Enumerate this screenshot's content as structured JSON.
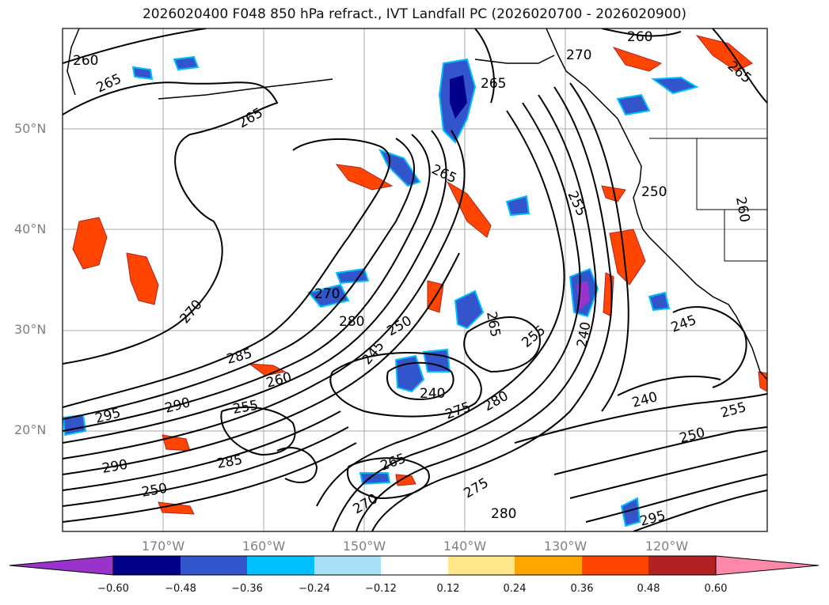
{
  "title": "2026020400 F048 850 hPa refract., IVT Landfall PC (2026020700 - 2026020900)",
  "lat_labels": [
    "50°N",
    "40°N",
    "30°N",
    "20°N"
  ],
  "lon_labels": [
    "170°W",
    "160°W",
    "150°W",
    "140°W",
    "130°W",
    "120°W"
  ],
  "colorbar": {
    "ticks": [
      "−0.60",
      "−0.48",
      "−0.36",
      "−0.24",
      "−0.12",
      "0.12",
      "0.24",
      "0.36",
      "0.48",
      "0.60"
    ],
    "colors": [
      "#9933cc",
      "#00008b",
      "#3355cc",
      "#00bfff",
      "#aadff8",
      "#ffffff",
      "#ffe68a",
      "#ffa500",
      "#ff4500",
      "#b22222",
      "#ff88aa"
    ]
  },
  "contour_labels": [
    "260",
    "265",
    "265",
    "270",
    "265",
    "260",
    "265",
    "255",
    "255",
    "250",
    "265",
    "270",
    "270",
    "280",
    "285",
    "290",
    "295",
    "250",
    "245",
    "240",
    "255",
    "280",
    "275",
    "240",
    "245",
    "255",
    "250",
    "260",
    "265",
    "270",
    "275",
    "280",
    "285",
    "290",
    "295",
    "250",
    "260",
    "240",
    "265"
  ]
}
